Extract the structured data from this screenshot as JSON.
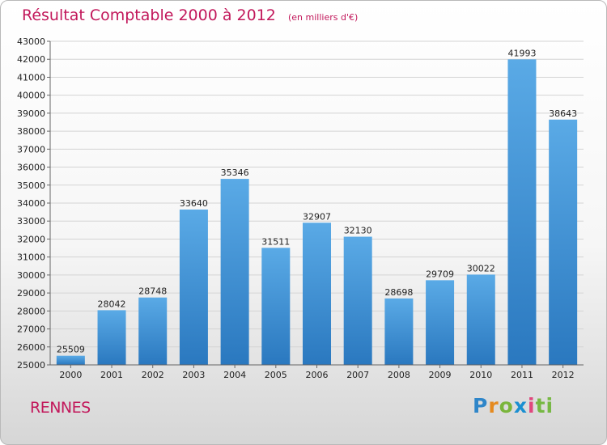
{
  "header": {
    "title": "Résultat Comptable 2000 à 2012",
    "subtitle": "(en milliers d'€)"
  },
  "footer": {
    "city": "RENNES",
    "logo_letters": [
      "P",
      "r",
      "o",
      "x",
      "i",
      "ti"
    ]
  },
  "colors": {
    "bar_light": "#5aaae6",
    "bar_dark": "#2a78bf",
    "title": "#c2185b"
  },
  "chart_data": {
    "type": "bar",
    "title": "Résultat Comptable 2000 à 2012",
    "subtitle": "(en milliers d'€)",
    "categories": [
      "2000",
      "2001",
      "2002",
      "2003",
      "2004",
      "2005",
      "2006",
      "2007",
      "2008",
      "2009",
      "2010",
      "2011",
      "2012"
    ],
    "values": [
      25509,
      28042,
      28748,
      33640,
      35346,
      31511,
      32907,
      32130,
      28698,
      29709,
      30022,
      41993,
      38643
    ],
    "ylim": [
      25000,
      43000
    ],
    "yticks": [
      25000,
      26000,
      27000,
      28000,
      29000,
      30000,
      31000,
      32000,
      33000,
      34000,
      35000,
      36000,
      37000,
      38000,
      39000,
      40000,
      41000,
      42000,
      43000
    ],
    "grid": true,
    "data_labels": true
  }
}
